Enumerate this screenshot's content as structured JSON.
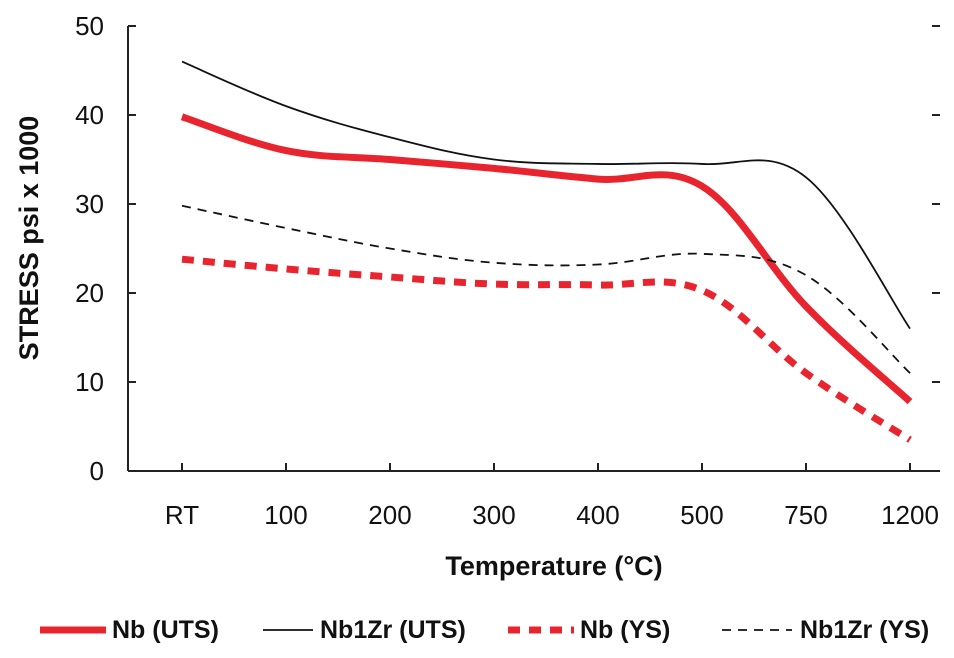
{
  "chart_data": {
    "type": "line",
    "title": "",
    "xlabel": "Temperature (°C)",
    "ylabel": "STRESS psi x 1000",
    "categories": [
      "RT",
      "100",
      "200",
      "300",
      "400",
      "500",
      "750",
      "1200"
    ],
    "ylim": [
      0,
      50
    ],
    "yticks": [
      "0",
      "10",
      "20",
      "30",
      "40",
      "50"
    ],
    "grid": false,
    "legend_position": "bottom",
    "series": [
      {
        "name": "Nb (UTS)",
        "values": [
          39.8,
          36.0,
          35.0,
          34.0,
          32.8,
          32.0,
          18.5,
          7.8
        ],
        "color": "#e8242e",
        "style": "solid-thick"
      },
      {
        "name": "Nb1Zr (UTS)",
        "values": [
          46.0,
          41.0,
          37.5,
          35.0,
          34.5,
          34.5,
          33.0,
          16.0
        ],
        "color": "#111111",
        "style": "solid-thin"
      },
      {
        "name": "Nb (YS)",
        "values": [
          23.8,
          22.7,
          21.8,
          21.0,
          20.9,
          20.3,
          11.0,
          3.5
        ],
        "color": "#e8242e",
        "style": "dashed-thick"
      },
      {
        "name": "Nb1Zr (YS)",
        "values": [
          29.8,
          27.3,
          25.0,
          23.4,
          23.2,
          24.4,
          22.0,
          11.0
        ],
        "color": "#111111",
        "style": "dashed-thin"
      }
    ]
  }
}
